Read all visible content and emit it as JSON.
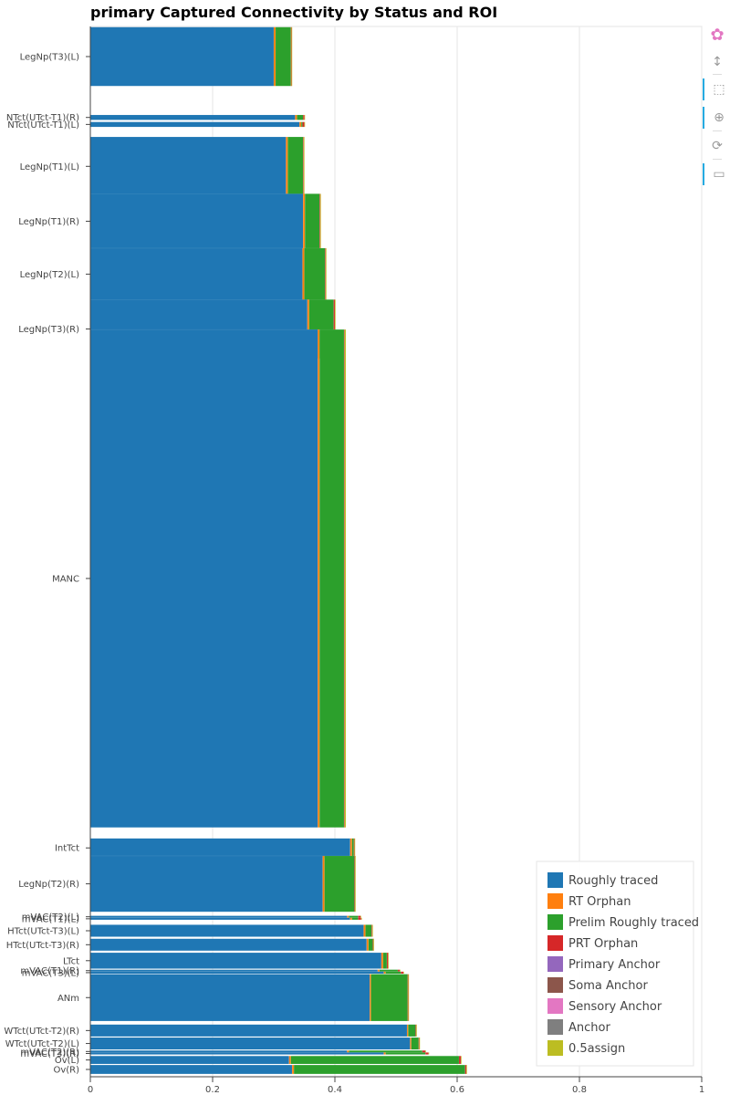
{
  "chart_data": {
    "type": "bar",
    "orientation": "horizontal",
    "stacked": true,
    "title": "primary Captured Connectivity by Status and ROI",
    "xlim": [
      0,
      1
    ],
    "x_ticks": [
      "0",
      "0.2",
      "0.4",
      "0.6",
      "0.8",
      "1"
    ],
    "x_tick_values": [
      0,
      0.2,
      0.4,
      0.6,
      0.8,
      1
    ],
    "grid": "vertical",
    "legend_position": "bottom-right",
    "series": [
      {
        "name": "Roughly traced",
        "color": "#1f77b4"
      },
      {
        "name": "RT Orphan",
        "color": "#ff7f0e"
      },
      {
        "name": "Prelim Roughly traced",
        "color": "#2ca02c"
      },
      {
        "name": "PRT Orphan",
        "color": "#d62728"
      },
      {
        "name": "Primary Anchor",
        "color": "#9467bd"
      },
      {
        "name": "Soma Anchor",
        "color": "#8c564b"
      },
      {
        "name": "Sensory Anchor",
        "color": "#e377c2"
      },
      {
        "name": "Anchor",
        "color": "#7f7f7f"
      },
      {
        "name": "0.5assign",
        "color": "#bcbd22"
      }
    ],
    "categories": [
      {
        "label": "LegNp(T3)(L)",
        "center": 0.0,
        "weight": 0.059,
        "values": [
          0.3,
          0.003,
          0.025,
          0.001,
          0,
          0,
          0,
          0,
          0.001
        ]
      },
      {
        "label": "NTct(UTct-T1)(R)",
        "center": 0.061,
        "weight": 0.005,
        "values": [
          0.335,
          0.003,
          0.01,
          0.002,
          0,
          0,
          0,
          0,
          0.001
        ]
      },
      {
        "label": "NTct(UTct-T1)(L)",
        "center": 0.068,
        "weight": 0.005,
        "values": [
          0.342,
          0.003,
          0.002,
          0.003,
          0,
          0,
          0,
          0,
          0.001
        ]
      },
      {
        "label": "LegNp(T1)(L)",
        "center": 0.11,
        "weight": 0.059,
        "values": [
          0.32,
          0.003,
          0.025,
          0.001,
          0,
          0,
          0,
          0,
          0.001
        ]
      },
      {
        "label": "LegNp(T1)(R)",
        "center": 0.165,
        "weight": 0.055,
        "values": [
          0.348,
          0.003,
          0.024,
          0.001,
          0,
          0,
          0,
          0,
          0.001
        ]
      },
      {
        "label": "LegNp(T2)(L)",
        "center": 0.218,
        "weight": 0.052,
        "values": [
          0.347,
          0.003,
          0.034,
          0.001,
          0,
          0,
          0,
          0,
          0.001
        ]
      },
      {
        "label": "LegNp(T3)(R)",
        "center": 0.273,
        "weight": 0.059,
        "values": [
          0.355,
          0.003,
          0.04,
          0.002,
          0,
          0,
          0,
          0,
          0.001
        ]
      },
      {
        "label": "MANC",
        "center": 0.523,
        "weight": 0.499,
        "values": [
          0.372,
          0.003,
          0.04,
          0.001,
          0,
          0,
          0,
          0,
          0.002
        ]
      },
      {
        "label": "IntTct",
        "center": 0.793,
        "weight": 0.019,
        "values": [
          0.425,
          0.003,
          0.003,
          0.001,
          0,
          0,
          0,
          0,
          0.001
        ]
      },
      {
        "label": "LegNp(T2)(R)",
        "center": 0.829,
        "weight": 0.056,
        "values": [
          0.38,
          0.003,
          0.049,
          0.001,
          0,
          0,
          0,
          0,
          0.001
        ]
      },
      {
        "label": "mVAC(T2)(L)",
        "center": 0.862,
        "weight": 0.002,
        "values": [
          0.42,
          0.003,
          0.015,
          0.004,
          0,
          0,
          0,
          0,
          0.001
        ]
      },
      {
        "label": "mVAC(T1)(L)",
        "center": 0.864,
        "weight": 0.002,
        "values": [
          0.425,
          0.003,
          0.01,
          0.005,
          0,
          0,
          0,
          0,
          0.001
        ]
      },
      {
        "label": "HTct(UTct-T3)(L)",
        "center": 0.876,
        "weight": 0.012,
        "values": [
          0.447,
          0.003,
          0.01,
          0.001,
          0,
          0,
          0,
          0,
          0.001
        ]
      },
      {
        "label": "HTct(UTct-T3)(R)",
        "center": 0.89,
        "weight": 0.012,
        "values": [
          0.452,
          0.003,
          0.007,
          0.001,
          0,
          0,
          0,
          0,
          0.001
        ]
      },
      {
        "label": "LTct",
        "center": 0.906,
        "weight": 0.016,
        "values": [
          0.476,
          0.003,
          0.006,
          0.002,
          0,
          0,
          0,
          0,
          0.001
        ]
      },
      {
        "label": "mVAC(T1)(R)",
        "center": 0.916,
        "weight": 0.002,
        "values": [
          0.47,
          0.003,
          0.03,
          0.003,
          0,
          0,
          0,
          0,
          0.001
        ]
      },
      {
        "label": "mVAC(T3)(L)",
        "center": 0.918,
        "weight": 0.002,
        "values": [
          0.48,
          0.003,
          0.025,
          0.004,
          0,
          0,
          0,
          0,
          0.001
        ]
      },
      {
        "label": "ANm",
        "center": 0.943,
        "weight": 0.047,
        "values": [
          0.457,
          0.002,
          0.06,
          0.001,
          0,
          0,
          0,
          0,
          0.001
        ]
      },
      {
        "label": "WTct(UTct-T2)(R)",
        "center": 0.976,
        "weight": 0.012,
        "values": [
          0.518,
          0.002,
          0.012,
          0.001,
          0,
          0,
          0,
          0,
          0.001
        ]
      },
      {
        "label": "WTct(UTct-T2)(L)",
        "center": 0.989,
        "weight": 0.012,
        "values": [
          0.523,
          0.002,
          0.012,
          0.001,
          0,
          0,
          0,
          0,
          0.001
        ]
      },
      {
        "label": "mVAC(T2)(R)",
        "center": 0.997,
        "weight": 0.002,
        "values": [
          0.42,
          0.003,
          0.12,
          0.005,
          0,
          0,
          0,
          0,
          0.001
        ]
      },
      {
        "label": "mVAC(T3)(R)",
        "center": 0.999,
        "weight": 0.002,
        "values": [
          0.48,
          0.003,
          0.065,
          0.005,
          0,
          0,
          0,
          0,
          0.001
        ]
      },
      {
        "label": "Ov(L)",
        "center": 1.0055,
        "weight": 0.008,
        "values": [
          0.325,
          0.003,
          0.275,
          0.003,
          0,
          0,
          0,
          0,
          0.001
        ]
      },
      {
        "label": "Ov(R)",
        "center": 1.015,
        "weight": 0.009,
        "values": [
          0.33,
          0.003,
          0.28,
          0.002,
          0,
          0,
          0,
          0,
          0.001
        ]
      }
    ]
  },
  "toolbar": {
    "tools": [
      {
        "name": "bokeh-logo-icon",
        "glyph": "✿"
      },
      {
        "name": "pan-icon",
        "glyph": "↕"
      },
      {
        "name": "box-zoom-icon",
        "glyph": "⬚"
      },
      {
        "name": "wheel-zoom-icon",
        "glyph": "⊕"
      },
      {
        "name": "reset-icon",
        "glyph": "⟳"
      },
      {
        "name": "hover-icon",
        "glyph": "▭"
      }
    ]
  }
}
